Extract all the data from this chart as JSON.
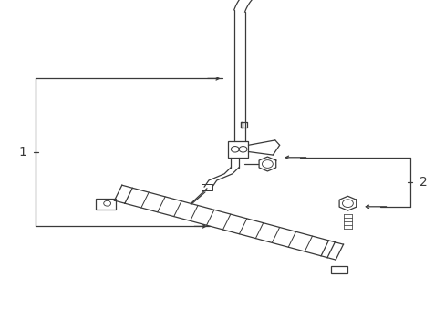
{
  "background_color": "#ffffff",
  "line_color": "#3a3a3a",
  "label_1": "1",
  "label_2": "2",
  "figsize": [
    4.89,
    3.6
  ],
  "dpi": 100
}
